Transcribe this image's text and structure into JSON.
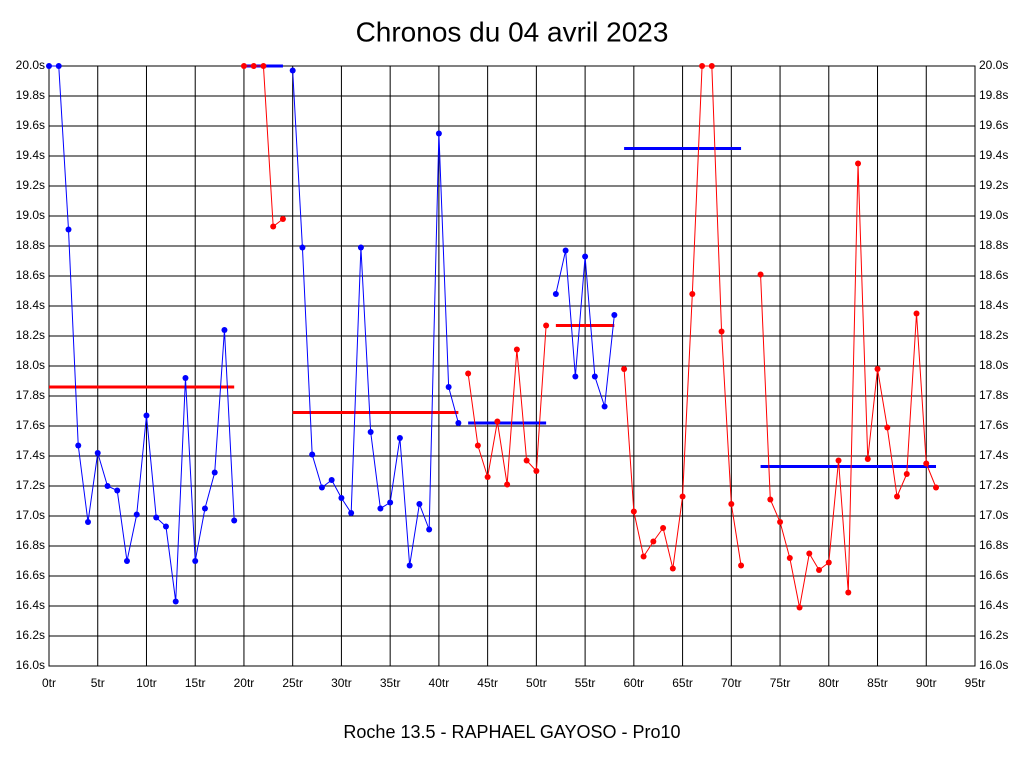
{
  "chart_data": {
    "type": "line",
    "title": "Chronos du 04 avril 2023",
    "caption": "Roche 13.5 - RAPHAEL GAYOSO - Pro10",
    "grid": true,
    "xlim": [
      0,
      95
    ],
    "ylim": [
      16,
      20
    ],
    "xticks": [
      {
        "value": 0,
        "label": "0tr"
      },
      {
        "value": 5,
        "label": "5tr"
      },
      {
        "value": 10,
        "label": "10tr"
      },
      {
        "value": 15,
        "label": "15tr"
      },
      {
        "value": 20,
        "label": "20tr"
      },
      {
        "value": 25,
        "label": "25tr"
      },
      {
        "value": 30,
        "label": "30tr"
      },
      {
        "value": 35,
        "label": "35tr"
      },
      {
        "value": 40,
        "label": "40tr"
      },
      {
        "value": 45,
        "label": "45tr"
      },
      {
        "value": 50,
        "label": "50tr"
      },
      {
        "value": 55,
        "label": "55tr"
      },
      {
        "value": 60,
        "label": "60tr"
      },
      {
        "value": 65,
        "label": "65tr"
      },
      {
        "value": 70,
        "label": "70tr"
      },
      {
        "value": 75,
        "label": "75tr"
      },
      {
        "value": 80,
        "label": "80tr"
      },
      {
        "value": 85,
        "label": "85tr"
      },
      {
        "value": 90,
        "label": "90tr"
      },
      {
        "value": 95,
        "label": "95tr"
      }
    ],
    "yticks": [
      {
        "value": 16.0,
        "label": "16.0s"
      },
      {
        "value": 16.2,
        "label": "16.2s"
      },
      {
        "value": 16.4,
        "label": "16.4s"
      },
      {
        "value": 16.6,
        "label": "16.6s"
      },
      {
        "value": 16.8,
        "label": "16.8s"
      },
      {
        "value": 17.0,
        "label": "17.0s"
      },
      {
        "value": 17.2,
        "label": "17.2s"
      },
      {
        "value": 17.4,
        "label": "17.4s"
      },
      {
        "value": 17.6,
        "label": "17.6s"
      },
      {
        "value": 17.8,
        "label": "17.8s"
      },
      {
        "value": 18.0,
        "label": "18.0s"
      },
      {
        "value": 18.2,
        "label": "18.2s"
      },
      {
        "value": 18.4,
        "label": "18.4s"
      },
      {
        "value": 18.6,
        "label": "18.6s"
      },
      {
        "value": 18.8,
        "label": "18.8s"
      },
      {
        "value": 19.0,
        "label": "19.0s"
      },
      {
        "value": 19.2,
        "label": "19.2s"
      },
      {
        "value": 19.4,
        "label": "19.4s"
      },
      {
        "value": 19.6,
        "label": "19.6s"
      },
      {
        "value": 19.8,
        "label": "19.8s"
      },
      {
        "value": 20.0,
        "label": "20.0s"
      }
    ],
    "x": [
      0,
      1,
      2,
      3,
      4,
      5,
      6,
      7,
      8,
      9,
      10,
      11,
      12,
      13,
      14,
      15,
      16,
      17,
      18,
      19,
      20,
      21,
      22,
      23,
      24,
      25,
      26,
      27,
      28,
      29,
      30,
      31,
      32,
      33,
      34,
      35,
      36,
      37,
      38,
      39,
      40,
      41,
      42,
      43,
      44,
      45,
      46,
      47,
      48,
      49,
      50,
      51,
      52,
      53,
      54,
      55,
      56,
      57,
      58,
      59,
      60,
      61,
      62,
      63,
      64,
      65,
      66,
      67,
      68,
      69,
      70,
      71,
      72,
      73,
      74,
      75,
      76,
      77,
      78,
      79,
      80,
      81,
      82,
      83,
      84,
      85,
      86,
      87,
      88,
      89,
      90,
      91
    ],
    "series": [
      {
        "color": "#0000ff",
        "values": [
          20.0,
          20.0,
          18.91,
          17.47,
          16.96,
          17.42,
          17.2,
          17.17,
          16.7,
          17.01,
          17.67,
          16.99,
          16.93,
          16.43,
          17.92,
          16.7,
          17.05,
          17.29,
          18.24,
          16.97,
          null,
          null,
          null,
          null,
          null,
          19.97,
          18.79,
          17.41,
          17.19,
          17.24,
          17.12,
          17.02,
          18.79,
          17.56,
          17.05,
          17.09,
          17.52,
          16.67,
          17.08,
          16.91,
          19.55,
          17.86,
          17.62,
          null,
          null,
          null,
          null,
          null,
          null,
          null,
          null,
          null,
          18.48,
          18.77,
          17.93,
          18.73,
          17.93,
          17.73,
          18.34,
          null,
          null,
          null,
          null,
          null,
          null,
          null,
          null,
          null,
          null,
          null,
          null,
          null,
          null,
          null,
          null,
          null,
          null,
          null,
          null,
          null,
          null,
          null,
          null,
          null,
          null,
          null,
          null,
          null,
          null,
          null,
          null,
          null
        ]
      },
      {
        "color": "#ff0000",
        "values": [
          null,
          null,
          null,
          null,
          null,
          null,
          null,
          null,
          null,
          null,
          null,
          null,
          null,
          null,
          null,
          null,
          null,
          null,
          null,
          null,
          20.0,
          20.0,
          20.0,
          18.93,
          18.98,
          null,
          null,
          null,
          null,
          null,
          null,
          null,
          null,
          null,
          null,
          null,
          null,
          null,
          null,
          null,
          null,
          null,
          null,
          17.95,
          17.47,
          17.26,
          17.63,
          17.21,
          18.11,
          17.37,
          17.3,
          18.27,
          null,
          null,
          null,
          null,
          null,
          null,
          null,
          17.98,
          17.03,
          16.73,
          16.83,
          16.92,
          16.65,
          17.13,
          18.48,
          20.0,
          20.0,
          18.23,
          17.08,
          16.67,
          null,
          18.61,
          17.11,
          16.96,
          16.72,
          16.39,
          16.75,
          16.64,
          16.69,
          17.37,
          16.49,
          19.35,
          17.38,
          17.98,
          17.59,
          17.13,
          17.28,
          18.35,
          17.35,
          17.19
        ]
      }
    ],
    "mean_lines": [
      {
        "color": "#ff0000",
        "value": 17.86,
        "x_start": 0,
        "x_end": 19
      },
      {
        "color": "#0000ff",
        "value": 20.0,
        "x_start": 20,
        "x_end": 24
      },
      {
        "color": "#ff0000",
        "value": 17.69,
        "x_start": 25,
        "x_end": 42
      },
      {
        "color": "#0000ff",
        "value": 17.62,
        "x_start": 43,
        "x_end": 51
      },
      {
        "color": "#ff0000",
        "value": 18.27,
        "x_start": 52,
        "x_end": 58
      },
      {
        "color": "#0000ff",
        "value": 19.45,
        "x_start": 59,
        "x_end": 71
      },
      {
        "color": "#0000ff",
        "value": 17.33,
        "x_start": 73,
        "x_end": 91
      }
    ]
  }
}
